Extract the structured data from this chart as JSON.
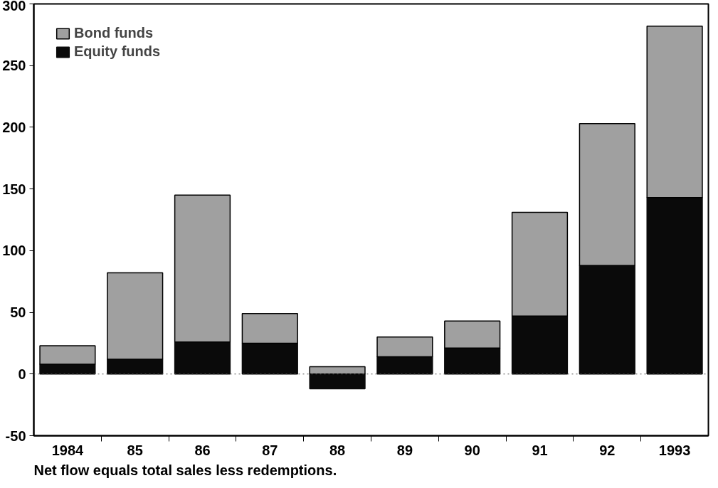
{
  "chart_data": {
    "type": "bar",
    "stacked": true,
    "categories": [
      "1984",
      "85",
      "86",
      "87",
      "88",
      "89",
      "90",
      "91",
      "92",
      "1993"
    ],
    "series": [
      {
        "name": "Equity funds",
        "color": "#0a0a0a",
        "values": [
          8,
          12,
          26,
          25,
          -12,
          14,
          21,
          47,
          88,
          143
        ]
      },
      {
        "name": "Bond funds",
        "color": "#a0a0a0",
        "values": [
          15,
          70,
          119,
          24,
          6,
          16,
          22,
          84,
          115,
          139
        ]
      }
    ],
    "ylim": [
      -50,
      300
    ],
    "yticks": [
      -50,
      0,
      50,
      100,
      150,
      200,
      250,
      300
    ],
    "ref_lines": [
      {
        "axis": "y",
        "value": 0,
        "line_style": "dotted"
      }
    ],
    "legend": "top left",
    "grid": false,
    "annotations": [
      "Net flow equals total sales less redemptions."
    ]
  }
}
